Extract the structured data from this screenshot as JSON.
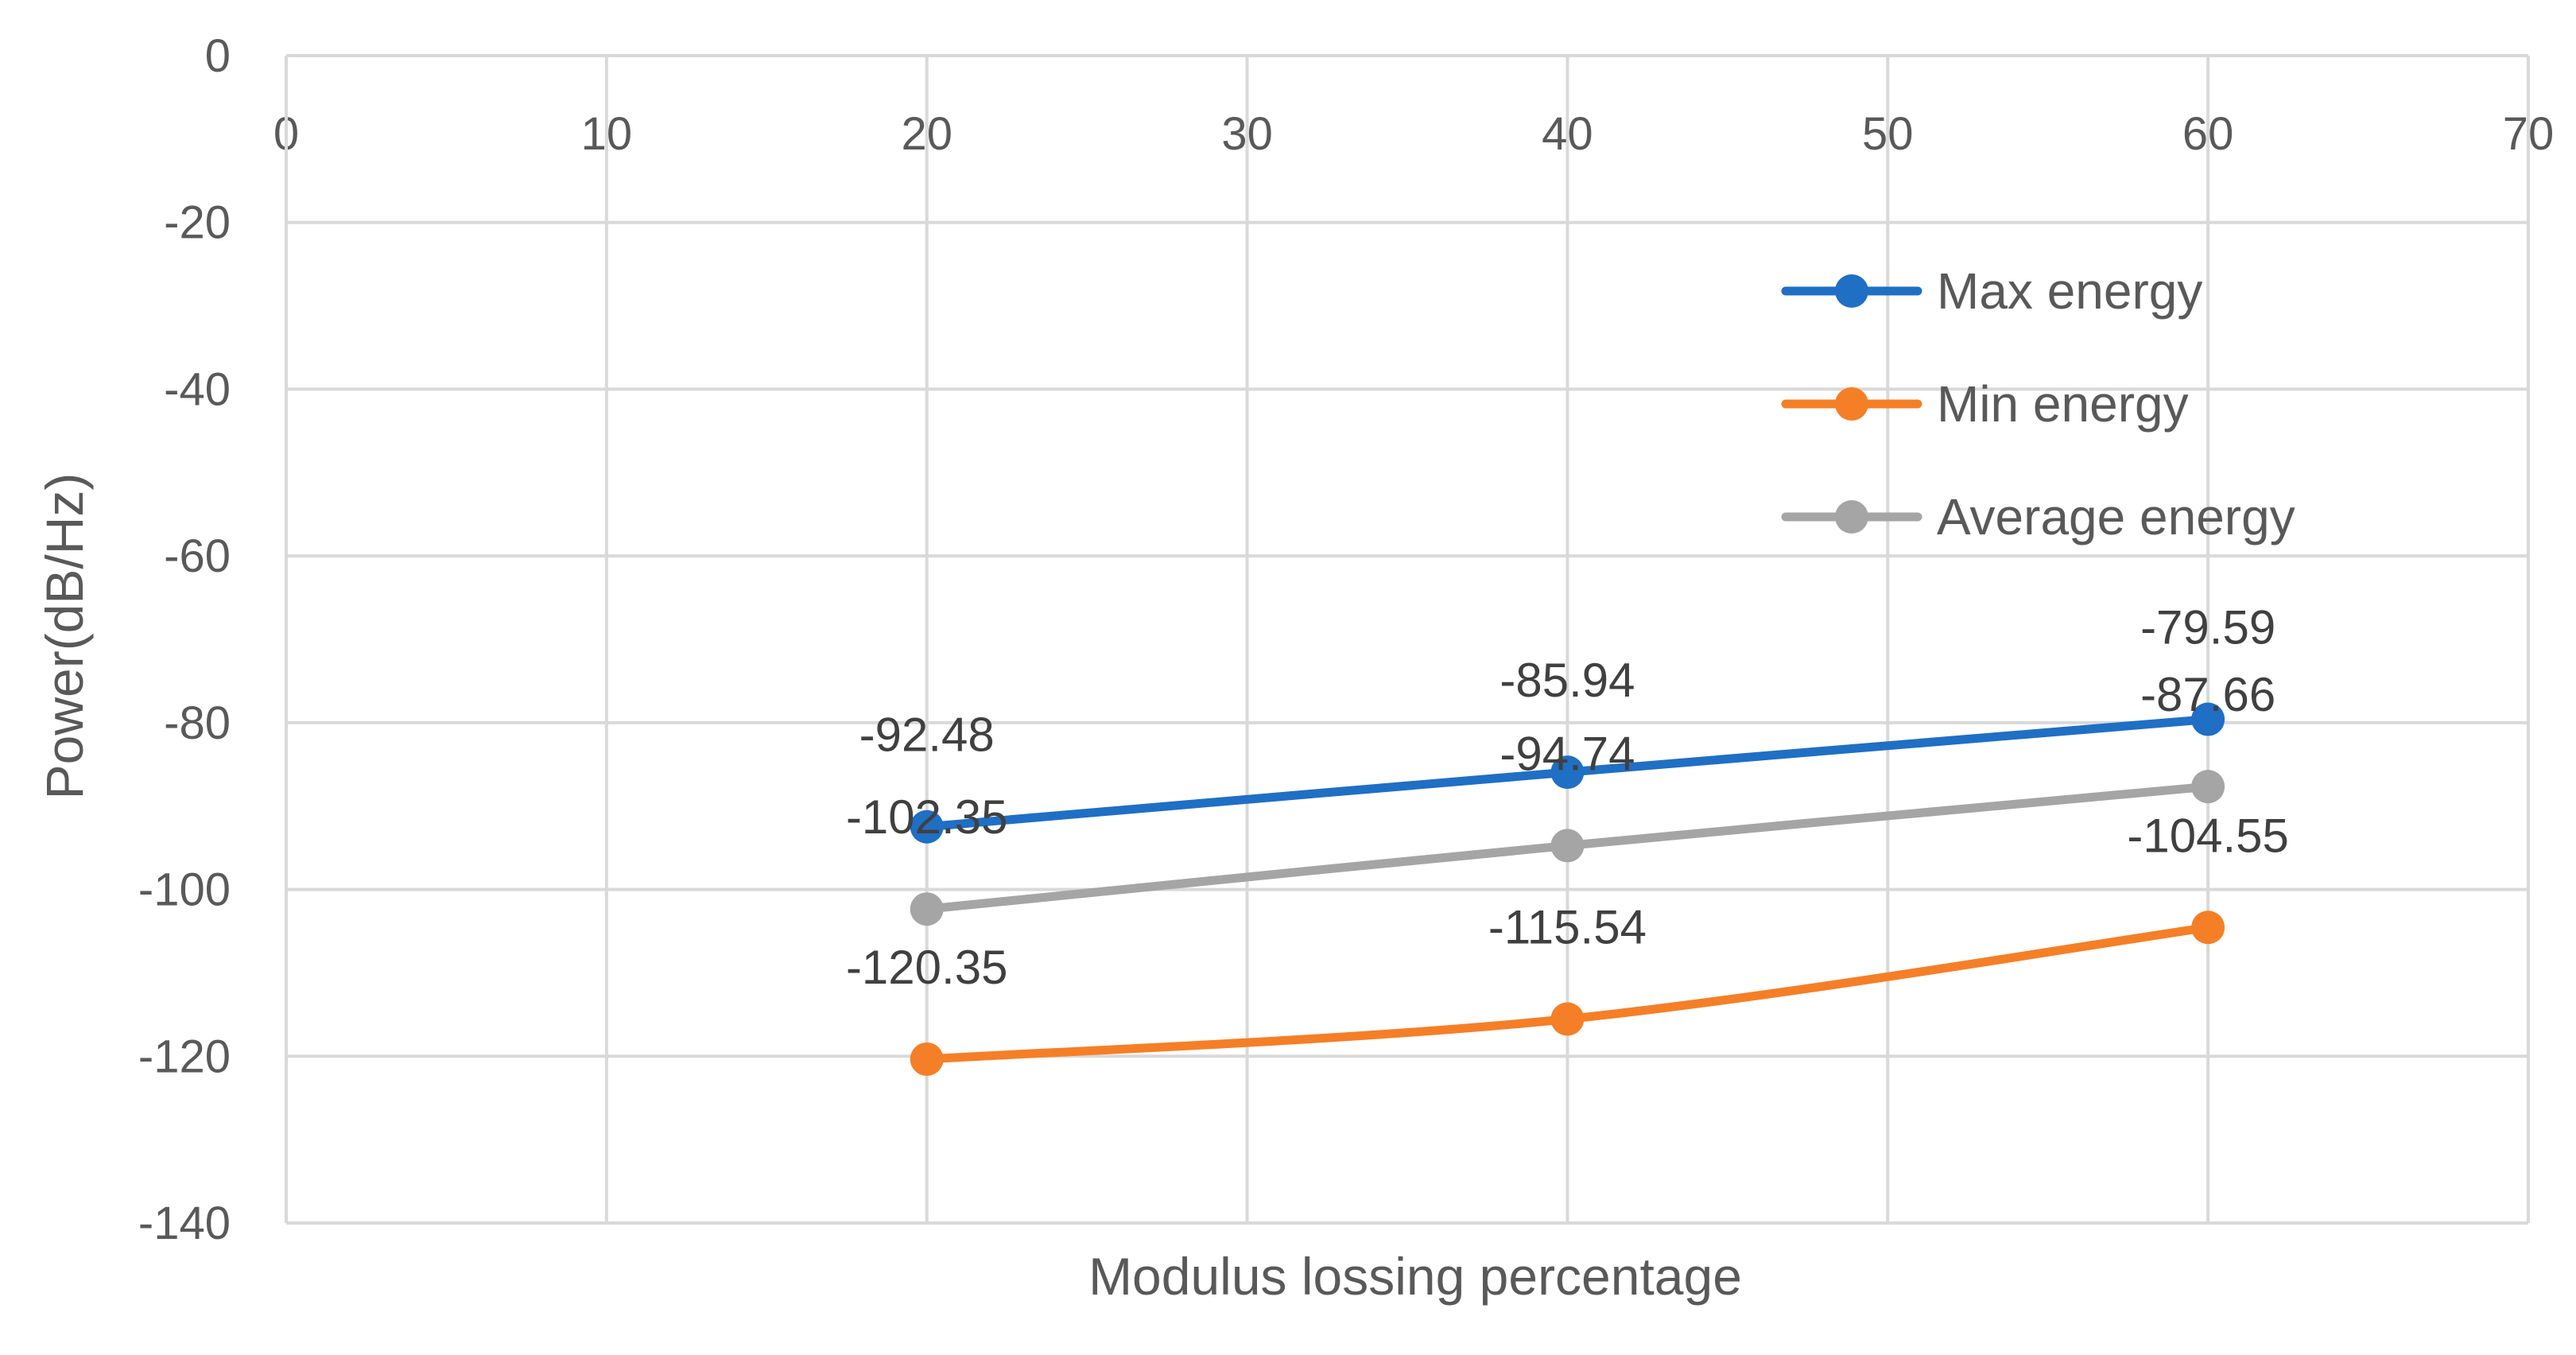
{
  "chart_data": {
    "type": "line",
    "title": "",
    "xlabel": "Modulus lossing percentage",
    "ylabel": "Power(dB/Hz)",
    "xlim": [
      0,
      70
    ],
    "ylim": [
      -140,
      0
    ],
    "xticks": [
      0,
      10,
      20,
      30,
      40,
      50,
      60,
      70
    ],
    "yticks": [
      0,
      -20,
      -40,
      -60,
      -80,
      -100,
      -120,
      -140
    ],
    "x_axis_position": "top",
    "grid": true,
    "legend_position": "top-right",
    "series": [
      {
        "name": "Max energy",
        "color": "#1f6fc5",
        "x": [
          20,
          40,
          60
        ],
        "values": [
          -92.48,
          -85.94,
          -79.59
        ],
        "labels": [
          "-92.48",
          "-85.94",
          "-79.59"
        ]
      },
      {
        "name": "Min energy",
        "color": "#f57f27",
        "x": [
          20,
          40,
          60
        ],
        "values": [
          -120.35,
          -115.54,
          -104.55
        ],
        "labels": [
          "-120.35",
          "-115.54",
          "-104.55"
        ]
      },
      {
        "name": "Average energy",
        "color": "#a5a5a5",
        "x": [
          20,
          40,
          60
        ],
        "values": [
          -102.35,
          -94.74,
          -87.66
        ],
        "labels": [
          "-102.35",
          "-94.74",
          "-87.66"
        ]
      }
    ]
  }
}
